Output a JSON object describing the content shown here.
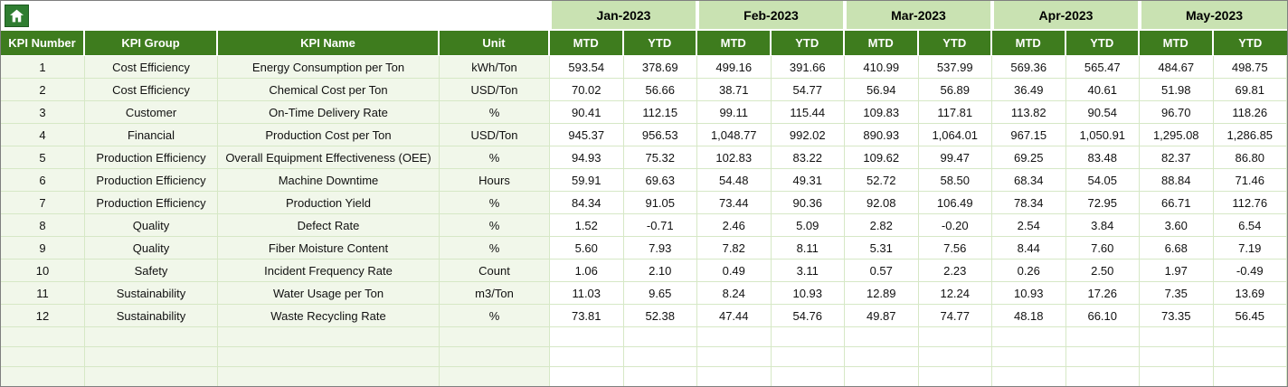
{
  "toolbar": {
    "home_icon": "home"
  },
  "months": [
    "Jan-2023",
    "Feb-2023",
    "Mar-2023",
    "Apr-2023",
    "May-2023"
  ],
  "column_headers": {
    "kpi_number": "KPI Number",
    "kpi_group": "KPI Group",
    "kpi_name": "KPI Name",
    "unit": "Unit"
  },
  "period_headers": {
    "mtd": "MTD",
    "ytd": "YTD"
  },
  "rows": [
    {
      "number": "1",
      "group": "Cost Efficiency",
      "name": "Energy Consumption per Ton",
      "unit": "kWh/Ton",
      "values": [
        "593.54",
        "378.69",
        "499.16",
        "391.66",
        "410.99",
        "537.99",
        "569.36",
        "565.47",
        "484.67",
        "498.75"
      ]
    },
    {
      "number": "2",
      "group": "Cost Efficiency",
      "name": "Chemical Cost per Ton",
      "unit": "USD/Ton",
      "values": [
        "70.02",
        "56.66",
        "38.71",
        "54.77",
        "56.94",
        "56.89",
        "36.49",
        "40.61",
        "51.98",
        "69.81"
      ]
    },
    {
      "number": "3",
      "group": "Customer",
      "name": "On-Time Delivery Rate",
      "unit": "%",
      "values": [
        "90.41",
        "112.15",
        "99.11",
        "115.44",
        "109.83",
        "117.81",
        "113.82",
        "90.54",
        "96.70",
        "118.26"
      ]
    },
    {
      "number": "4",
      "group": "Financial",
      "name": "Production Cost per Ton",
      "unit": "USD/Ton",
      "values": [
        "945.37",
        "956.53",
        "1,048.77",
        "992.02",
        "890.93",
        "1,064.01",
        "967.15",
        "1,050.91",
        "1,295.08",
        "1,286.85"
      ]
    },
    {
      "number": "5",
      "group": "Production Efficiency",
      "name": "Overall Equipment Effectiveness (OEE)",
      "unit": "%",
      "values": [
        "94.93",
        "75.32",
        "102.83",
        "83.22",
        "109.62",
        "99.47",
        "69.25",
        "83.48",
        "82.37",
        "86.80"
      ]
    },
    {
      "number": "6",
      "group": "Production Efficiency",
      "name": "Machine Downtime",
      "unit": "Hours",
      "values": [
        "59.91",
        "69.63",
        "54.48",
        "49.31",
        "52.72",
        "58.50",
        "68.34",
        "54.05",
        "88.84",
        "71.46"
      ]
    },
    {
      "number": "7",
      "group": "Production Efficiency",
      "name": "Production Yield",
      "unit": "%",
      "values": [
        "84.34",
        "91.05",
        "73.44",
        "90.36",
        "92.08",
        "106.49",
        "78.34",
        "72.95",
        "66.71",
        "112.76"
      ]
    },
    {
      "number": "8",
      "group": "Quality",
      "name": "Defect Rate",
      "unit": "%",
      "values": [
        "1.52",
        "-0.71",
        "2.46",
        "5.09",
        "2.82",
        "-0.20",
        "2.54",
        "3.84",
        "3.60",
        "6.54"
      ]
    },
    {
      "number": "9",
      "group": "Quality",
      "name": "Fiber Moisture Content",
      "unit": "%",
      "values": [
        "5.60",
        "7.93",
        "7.82",
        "8.11",
        "5.31",
        "7.56",
        "8.44",
        "7.60",
        "6.68",
        "7.19"
      ]
    },
    {
      "number": "10",
      "group": "Safety",
      "name": "Incident Frequency Rate",
      "unit": "Count",
      "values": [
        "1.06",
        "2.10",
        "0.49",
        "3.11",
        "0.57",
        "2.23",
        "0.26",
        "2.50",
        "1.97",
        "-0.49"
      ]
    },
    {
      "number": "11",
      "group": "Sustainability",
      "name": "Water Usage per Ton",
      "unit": "m3/Ton",
      "values": [
        "11.03",
        "9.65",
        "8.24",
        "10.93",
        "12.89",
        "12.24",
        "10.93",
        "17.26",
        "7.35",
        "13.69"
      ]
    },
    {
      "number": "12",
      "group": "Sustainability",
      "name": "Waste Recycling Rate",
      "unit": "%",
      "values": [
        "73.81",
        "52.38",
        "47.44",
        "54.76",
        "49.87",
        "74.77",
        "48.18",
        "66.10",
        "73.35",
        "56.45"
      ]
    }
  ],
  "empty_row_count": 3,
  "colors": {
    "header_green": "#3e7c1e",
    "month_header_green": "#c9e2b2",
    "row_tint": "#f1f7ea",
    "grid_line": "#d6e8c6",
    "home_button_green": "#2f7d31"
  }
}
